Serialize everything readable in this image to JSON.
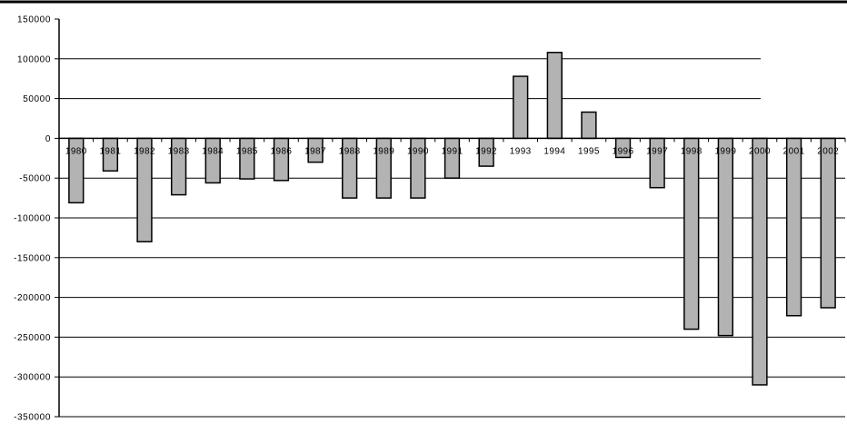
{
  "chart_data": {
    "type": "bar",
    "title": "",
    "xlabel": "",
    "ylabel": "",
    "categories": [
      "1980",
      "1981",
      "1982",
      "1983",
      "1984",
      "1985",
      "1986",
      "1987",
      "1988",
      "1989",
      "1990",
      "1991",
      "1992",
      "1993",
      "1994",
      "1995",
      "1996",
      "1997",
      "1998",
      "1999",
      "2000",
      "2001",
      "2002"
    ],
    "values": [
      -81000,
      -41000,
      -130000,
      -71000,
      -56000,
      -51000,
      -53000,
      -30000,
      -75000,
      -75000,
      -75000,
      -50000,
      -35000,
      78000,
      108000,
      33000,
      -24000,
      -62000,
      -240000,
      -248000,
      -310000,
      -223000,
      -213000
    ],
    "ylim": [
      -350000,
      150000
    ],
    "yticks": [
      150000,
      100000,
      50000,
      0,
      -50000,
      -100000,
      -150000,
      -200000,
      -250000,
      -300000,
      -350000
    ],
    "ytick_labels": [
      "150000",
      "100000",
      "50000",
      "0",
      "-50000",
      "-100000",
      "-150000",
      "-200000",
      "-250000",
      "-300000",
      "-350000"
    ],
    "grid": true,
    "legend": "none",
    "colors": {
      "bar_fill": "#b3b3b3",
      "bar_stroke": "#000000",
      "grid": "#000000",
      "background": "#ffffff"
    }
  }
}
